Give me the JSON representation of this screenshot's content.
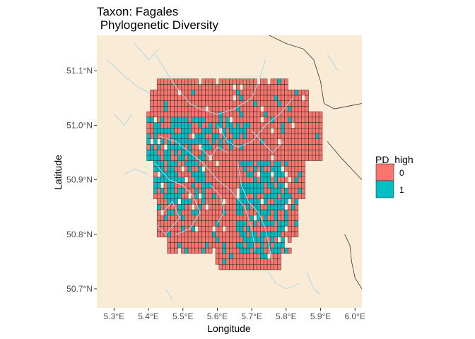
{
  "title_line1": "Taxon: Fagales",
  "title_line2": " Phylogenetic Diversity",
  "chart_data": {
    "type": "heatmap",
    "xlabel": "Longitude",
    "ylabel": "Latitude",
    "xlim": [
      5.25,
      6.02
    ],
    "ylim": [
      50.665,
      51.165
    ],
    "x_ticks": [
      {
        "value": 5.3,
        "label": "5.3°E"
      },
      {
        "value": 5.4,
        "label": "5.4°E"
      },
      {
        "value": 5.5,
        "label": "5.5°E"
      },
      {
        "value": 5.6,
        "label": "5.6°E"
      },
      {
        "value": 5.7,
        "label": "5.7°E"
      },
      {
        "value": 5.8,
        "label": "5.8°E"
      },
      {
        "value": 5.9,
        "label": "5.9°E"
      },
      {
        "value": 6.0,
        "label": "6.0°E"
      }
    ],
    "y_ticks": [
      {
        "value": 50.7,
        "label": "50.7°N"
      },
      {
        "value": 50.8,
        "label": "50.8°N"
      },
      {
        "value": 50.9,
        "label": "50.9°N"
      },
      {
        "value": 51.0,
        "label": "51.0°N"
      },
      {
        "value": 51.1,
        "label": "51.1°N"
      }
    ],
    "legend": {
      "title": "PD_high",
      "position": "right",
      "entries": [
        {
          "label": "0",
          "color": "#F8766D"
        },
        {
          "label": "1",
          "color": "#00BFC4"
        }
      ]
    },
    "grid_extent": {
      "lon": [
        5.395,
        5.905
      ],
      "lat": [
        50.735,
        51.085
      ]
    },
    "cell_size_deg": 0.01,
    "background_color": "#FAEBD7",
    "water_color": "#ADD8E6",
    "border_color": "#333333",
    "grid": false
  }
}
